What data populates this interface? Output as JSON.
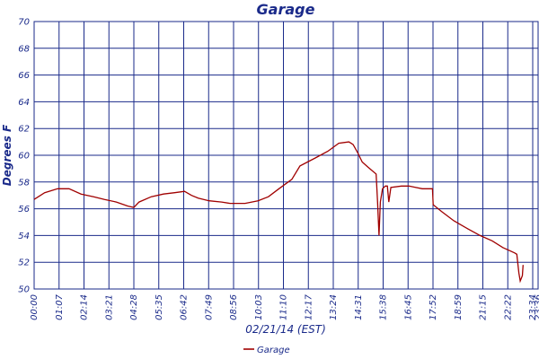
{
  "chart_data": {
    "type": "line",
    "title": "Garage",
    "xlabel": "02/21/14 (EST)",
    "ylabel": "Degrees F",
    "ylim": [
      50,
      70
    ],
    "yticks": [
      50,
      52,
      54,
      56,
      58,
      60,
      62,
      64,
      66,
      68,
      70
    ],
    "xlim": [
      0,
      1441
    ],
    "xtick_labels": [
      "00:00",
      "01:07",
      "02:14",
      "03:21",
      "04:28",
      "05:35",
      "06:42",
      "07:49",
      "08:56",
      "10:03",
      "11:10",
      "12:17",
      "13:24",
      "14:31",
      "15:38",
      "16:45",
      "17:52",
      "18:59",
      "21:15",
      "22:22",
      "23:34",
      "23:36"
    ],
    "grid": true,
    "legend_position": "bottom-center",
    "series": [
      {
        "name": "Garage",
        "color": "#a00000",
        "points": [
          [
            0,
            56.7
          ],
          [
            30,
            57.2
          ],
          [
            67,
            57.5
          ],
          [
            100,
            57.5
          ],
          [
            134,
            57.1
          ],
          [
            170,
            56.9
          ],
          [
            201,
            56.7
          ],
          [
            235,
            56.5
          ],
          [
            268,
            56.2
          ],
          [
            285,
            56.1
          ],
          [
            300,
            56.5
          ],
          [
            335,
            56.9
          ],
          [
            370,
            57.1
          ],
          [
            402,
            57.2
          ],
          [
            430,
            57.3
          ],
          [
            450,
            57.0
          ],
          [
            469,
            56.8
          ],
          [
            500,
            56.6
          ],
          [
            536,
            56.5
          ],
          [
            560,
            56.4
          ],
          [
            603,
            56.4
          ],
          [
            640,
            56.6
          ],
          [
            670,
            56.9
          ],
          [
            700,
            57.5
          ],
          [
            737,
            58.2
          ],
          [
            760,
            59.2
          ],
          [
            804,
            59.8
          ],
          [
            840,
            60.3
          ],
          [
            871,
            60.9
          ],
          [
            900,
            61.0
          ],
          [
            912,
            60.8
          ],
          [
            925,
            60.2
          ],
          [
            938,
            59.5
          ],
          [
            955,
            59.1
          ],
          [
            978,
            58.6
          ],
          [
            982,
            56.5
          ],
          [
            986,
            54.0
          ],
          [
            990,
            56.5
          ],
          [
            996,
            57.5
          ],
          [
            1004,
            57.7
          ],
          [
            1010,
            57.7
          ],
          [
            1014,
            56.5
          ],
          [
            1020,
            57.6
          ],
          [
            1050,
            57.7
          ],
          [
            1072,
            57.7
          ],
          [
            1090,
            57.6
          ],
          [
            1110,
            57.5
          ],
          [
            1139,
            57.5
          ],
          [
            1141,
            56.3
          ],
          [
            1165,
            55.8
          ],
          [
            1200,
            55.1
          ],
          [
            1240,
            54.5
          ],
          [
            1275,
            54.0
          ],
          [
            1310,
            53.6
          ],
          [
            1340,
            53.1
          ],
          [
            1374,
            52.7
          ],
          [
            1380,
            52.6
          ],
          [
            1386,
            51.2
          ],
          [
            1390,
            50.6
          ],
          [
            1396,
            51.0
          ],
          [
            1398,
            51.8
          ]
        ]
      }
    ]
  }
}
